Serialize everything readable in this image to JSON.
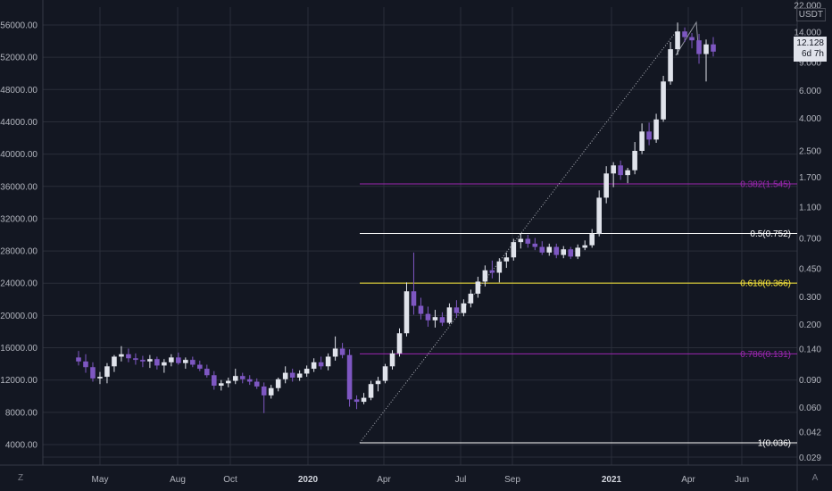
{
  "chart_data": {
    "type": "candlestick",
    "currency": "USDT",
    "left_axis_ticks": [
      "56000.00",
      "52000.00",
      "48000.00",
      "44000.00",
      "40000.00",
      "36000.00",
      "32000.00",
      "28000.00",
      "24000.00",
      "20000.00",
      "16000.00",
      "12000.00",
      "8000.00",
      "4000.00"
    ],
    "right_axis_ticks": [
      "22.000",
      "14.000",
      "9.000",
      "6.000",
      "4.000",
      "2.500",
      "1.700",
      "1.100",
      "0.700",
      "0.450",
      "0.300",
      "0.200",
      "0.140",
      "0.090",
      "0.060",
      "0.042",
      "0.029"
    ],
    "x_ticks": [
      {
        "label": "May",
        "bold": false
      },
      {
        "label": "Aug",
        "bold": false
      },
      {
        "label": "Oct",
        "bold": false
      },
      {
        "label": "2020",
        "bold": true
      },
      {
        "label": "Apr",
        "bold": false
      },
      {
        "label": "Jul",
        "bold": false
      },
      {
        "label": "Sep",
        "bold": false
      },
      {
        "label": "2021",
        "bold": true
      },
      {
        "label": "Apr",
        "bold": false
      },
      {
        "label": "Jun",
        "bold": false
      }
    ],
    "fib_levels": [
      {
        "label": "0.382(1.545)",
        "ratio": 0.382,
        "value": 1.545,
        "color": "#9c27b0"
      },
      {
        "label": "0.5(0.752)",
        "ratio": 0.5,
        "value": 0.752,
        "color": "#ffffff"
      },
      {
        "label": "0.618(0.366)",
        "ratio": 0.618,
        "value": 0.366,
        "color": "#ffeb3b"
      },
      {
        "label": "0.786(0.131)",
        "ratio": 0.786,
        "value": 0.131,
        "color": "#9c27b0"
      },
      {
        "label": "1(0.036)",
        "ratio": 1,
        "value": 0.036,
        "color": "#ffffff"
      }
    ],
    "last_price": "12.128",
    "countdown": "6d 7h",
    "bull_color": "#e0e3eb",
    "bear_color": "#7e57c2",
    "candles": [
      {
        "o": 14800,
        "h": 15600,
        "l": 13800,
        "c": 14300
      },
      {
        "o": 14300,
        "h": 15200,
        "l": 12900,
        "c": 13600
      },
      {
        "o": 13600,
        "h": 14200,
        "l": 11800,
        "c": 12200
      },
      {
        "o": 12200,
        "h": 13000,
        "l": 11500,
        "c": 12400
      },
      {
        "o": 12400,
        "h": 14100,
        "l": 11600,
        "c": 13700
      },
      {
        "o": 13700,
        "h": 15100,
        "l": 13000,
        "c": 14900
      },
      {
        "o": 14900,
        "h": 16200,
        "l": 14300,
        "c": 15200
      },
      {
        "o": 15200,
        "h": 15900,
        "l": 14200,
        "c": 14700
      },
      {
        "o": 14700,
        "h": 15300,
        "l": 13900,
        "c": 14500
      },
      {
        "o": 14500,
        "h": 15000,
        "l": 13600,
        "c": 14300
      },
      {
        "o": 14300,
        "h": 15100,
        "l": 13500,
        "c": 14600
      },
      {
        "o": 14600,
        "h": 14900,
        "l": 13300,
        "c": 13800
      },
      {
        "o": 13800,
        "h": 14600,
        "l": 12900,
        "c": 14200
      },
      {
        "o": 14200,
        "h": 15200,
        "l": 13700,
        "c": 14800
      },
      {
        "o": 14800,
        "h": 15400,
        "l": 13900,
        "c": 14100
      },
      {
        "o": 14100,
        "h": 14800,
        "l": 13400,
        "c": 14500
      },
      {
        "o": 14500,
        "h": 14900,
        "l": 13600,
        "c": 13900
      },
      {
        "o": 13900,
        "h": 14400,
        "l": 13100,
        "c": 13400
      },
      {
        "o": 13400,
        "h": 13900,
        "l": 12300,
        "c": 12600
      },
      {
        "o": 12600,
        "h": 13100,
        "l": 10800,
        "c": 11300
      },
      {
        "o": 11300,
        "h": 12000,
        "l": 10700,
        "c": 11600
      },
      {
        "o": 11600,
        "h": 12300,
        "l": 11100,
        "c": 11900
      },
      {
        "o": 11900,
        "h": 13400,
        "l": 11500,
        "c": 12500
      },
      {
        "o": 12500,
        "h": 12900,
        "l": 11600,
        "c": 12100
      },
      {
        "o": 12100,
        "h": 12600,
        "l": 11400,
        "c": 11800
      },
      {
        "o": 11800,
        "h": 12200,
        "l": 10900,
        "c": 11200
      },
      {
        "o": 11200,
        "h": 11700,
        "l": 7900,
        "c": 10100
      },
      {
        "o": 10100,
        "h": 11400,
        "l": 9700,
        "c": 11000
      },
      {
        "o": 11000,
        "h": 12300,
        "l": 10600,
        "c": 12100
      },
      {
        "o": 12100,
        "h": 13700,
        "l": 11600,
        "c": 12900
      },
      {
        "o": 12900,
        "h": 13400,
        "l": 11800,
        "c": 12300
      },
      {
        "o": 12300,
        "h": 13200,
        "l": 11900,
        "c": 12800
      },
      {
        "o": 12800,
        "h": 13800,
        "l": 12400,
        "c": 13400
      },
      {
        "o": 13400,
        "h": 14700,
        "l": 13000,
        "c": 14200
      },
      {
        "o": 14200,
        "h": 14900,
        "l": 13300,
        "c": 13700
      },
      {
        "o": 13700,
        "h": 15300,
        "l": 13200,
        "c": 14900
      },
      {
        "o": 14900,
        "h": 17400,
        "l": 14400,
        "c": 15900
      },
      {
        "o": 15900,
        "h": 16600,
        "l": 14700,
        "c": 15100
      },
      {
        "o": 15100,
        "h": 15800,
        "l": 8700,
        "c": 9600
      },
      {
        "o": 9600,
        "h": 10100,
        "l": 8400,
        "c": 9300
      },
      {
        "o": 9300,
        "h": 10400,
        "l": 9000,
        "c": 9800
      },
      {
        "o": 9800,
        "h": 11900,
        "l": 9500,
        "c": 11500
      },
      {
        "o": 11500,
        "h": 12400,
        "l": 10600,
        "c": 11900
      },
      {
        "o": 11900,
        "h": 14000,
        "l": 11600,
        "c": 13700
      },
      {
        "o": 13700,
        "h": 15700,
        "l": 13300,
        "c": 15300
      },
      {
        "o": 15300,
        "h": 18400,
        "l": 14900,
        "c": 17800
      },
      {
        "o": 17800,
        "h": 24100,
        "l": 17400,
        "c": 23000
      },
      {
        "o": 23000,
        "h": 27800,
        "l": 20100,
        "c": 21200
      },
      {
        "o": 21200,
        "h": 22200,
        "l": 19500,
        "c": 20200
      },
      {
        "o": 20200,
        "h": 21100,
        "l": 18600,
        "c": 19400
      },
      {
        "o": 19400,
        "h": 20700,
        "l": 18500,
        "c": 19800
      },
      {
        "o": 19800,
        "h": 20400,
        "l": 18700,
        "c": 19100
      },
      {
        "o": 19100,
        "h": 21500,
        "l": 18900,
        "c": 21000
      },
      {
        "o": 21000,
        "h": 21900,
        "l": 19700,
        "c": 20300
      },
      {
        "o": 20300,
        "h": 22000,
        "l": 19900,
        "c": 21500
      },
      {
        "o": 21500,
        "h": 23200,
        "l": 21000,
        "c": 22700
      },
      {
        "o": 22700,
        "h": 24800,
        "l": 22200,
        "c": 24200
      },
      {
        "o": 24200,
        "h": 26200,
        "l": 23600,
        "c": 25600
      },
      {
        "o": 25600,
        "h": 26800,
        "l": 24600,
        "c": 25300
      },
      {
        "o": 25300,
        "h": 27100,
        "l": 24100,
        "c": 26700
      },
      {
        "o": 26700,
        "h": 27800,
        "l": 25900,
        "c": 27200
      },
      {
        "o": 27200,
        "h": 29500,
        "l": 26800,
        "c": 29100
      },
      {
        "o": 29100,
        "h": 30200,
        "l": 28300,
        "c": 29500
      },
      {
        "o": 29500,
        "h": 30000,
        "l": 28400,
        "c": 28900
      },
      {
        "o": 28900,
        "h": 29600,
        "l": 28100,
        "c": 28500
      },
      {
        "o": 28500,
        "h": 29200,
        "l": 27500,
        "c": 27800
      },
      {
        "o": 27800,
        "h": 28900,
        "l": 27400,
        "c": 28500
      },
      {
        "o": 28500,
        "h": 28900,
        "l": 27100,
        "c": 27500
      },
      {
        "o": 27500,
        "h": 28600,
        "l": 27100,
        "c": 28200
      },
      {
        "o": 28200,
        "h": 28500,
        "l": 27000,
        "c": 27300
      },
      {
        "o": 27300,
        "h": 28800,
        "l": 27000,
        "c": 28400
      },
      {
        "o": 28400,
        "h": 29300,
        "l": 28100,
        "c": 28700
      },
      {
        "o": 28700,
        "h": 30700,
        "l": 28400,
        "c": 30100
      },
      {
        "o": 30100,
        "h": 35500,
        "l": 29800,
        "c": 34600
      },
      {
        "o": 34600,
        "h": 38500,
        "l": 33900,
        "c": 37600
      },
      {
        "o": 37600,
        "h": 39000,
        "l": 35900,
        "c": 38600
      },
      {
        "o": 38600,
        "h": 39200,
        "l": 36800,
        "c": 37400
      },
      {
        "o": 37400,
        "h": 38300,
        "l": 36400,
        "c": 38000
      },
      {
        "o": 38000,
        "h": 41500,
        "l": 37500,
        "c": 40400
      },
      {
        "o": 40400,
        "h": 43800,
        "l": 40000,
        "c": 42800
      },
      {
        "o": 42800,
        "h": 43900,
        "l": 41100,
        "c": 41800
      },
      {
        "o": 41800,
        "h": 45000,
        "l": 41400,
        "c": 44300
      },
      {
        "o": 44300,
        "h": 49700,
        "l": 44000,
        "c": 49000
      },
      {
        "o": 49000,
        "h": 53900,
        "l": 48600,
        "c": 53000
      },
      {
        "o": 53000,
        "h": 56300,
        "l": 52300,
        "c": 55200
      },
      {
        "o": 55200,
        "h": 55700,
        "l": 53900,
        "c": 54500
      },
      {
        "o": 54500,
        "h": 55000,
        "l": 53100,
        "c": 54100
      },
      {
        "o": 54100,
        "h": 54900,
        "l": 51200,
        "c": 52400
      },
      {
        "o": 52400,
        "h": 54200,
        "l": 49000,
        "c": 53600
      },
      {
        "o": 53600,
        "h": 54500,
        "l": 52100,
        "c": 52700
      }
    ]
  }
}
